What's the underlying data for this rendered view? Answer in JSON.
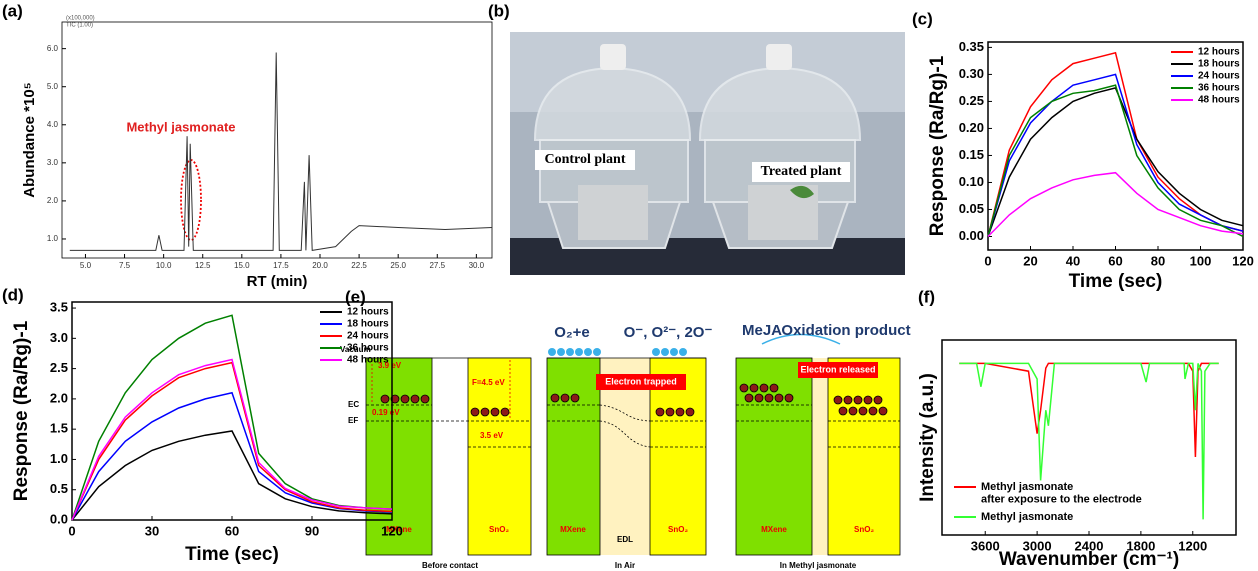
{
  "panel_labels": [
    "(a)",
    "(b)",
    "(c)",
    "(d)",
    "(e)",
    "(f)"
  ],
  "chart_data": [
    {
      "type": "line",
      "xlabel": "RT (min)",
      "ylabel": "Abundance *10⁵",
      "header": [
        "(x100,000)",
        "TIC (1.00)"
      ],
      "annotation": "Methyl jasmonate",
      "x": [
        4,
        9.5,
        9.7,
        9.9,
        11.3,
        11.5,
        11.6,
        11.7,
        11.9,
        17.0,
        17.2,
        17.4,
        18.8,
        19.0,
        19.1,
        19.3,
        19.5,
        21,
        22,
        22.5,
        25,
        28,
        31
      ],
      "series": [
        {
          "color": "#333333",
          "values": [
            0.7,
            0.7,
            1.1,
            0.7,
            0.7,
            3.7,
            0.8,
            3.5,
            0.7,
            0.7,
            5.9,
            0.7,
            0.7,
            2.5,
            0.7,
            3.2,
            0.7,
            0.8,
            1.2,
            1.35,
            1.3,
            1.25,
            1.3
          ]
        }
      ],
      "xlim": [
        3.5,
        31
      ],
      "xticks": [
        {
          "value": 5,
          "label": "5.0"
        },
        7.5,
        {
          "value": 10,
          "label": "10.0"
        },
        12.5,
        {
          "value": 15,
          "label": "15.0"
        },
        17.5,
        {
          "value": 20,
          "label": "20.0"
        },
        22.5,
        {
          "value": 25,
          "label": "25.0"
        },
        27.5,
        {
          "value": 30,
          "label": "30.0"
        }
      ],
      "ylim": [
        0.5,
        6.7
      ],
      "yticks": [
        {
          "value": 1,
          "label": "1.0"
        },
        {
          "value": 2,
          "label": "2.0"
        },
        {
          "value": 3,
          "label": "3.0"
        },
        {
          "value": 4,
          "label": "4.0"
        },
        {
          "value": 5,
          "label": "5.0"
        },
        {
          "value": 6,
          "label": "6.0"
        }
      ]
    },
    {
      "type": "line",
      "xlabel": "Time (sec)",
      "ylabel": "Response (Ra/Rg)-1",
      "legend": "upper right",
      "x": [
        0,
        10,
        20,
        30,
        40,
        50,
        60,
        70,
        80,
        90,
        100,
        110,
        120
      ],
      "series": [
        {
          "name": "12 hours",
          "color": "#ff0000",
          "values": [
            0,
            0.16,
            0.24,
            0.29,
            0.32,
            0.33,
            0.34,
            0.18,
            0.11,
            0.07,
            0.04,
            0.02,
            0.01
          ]
        },
        {
          "name": "18 hours",
          "color": "#000000",
          "values": [
            0,
            0.11,
            0.18,
            0.22,
            0.25,
            0.265,
            0.275,
            0.18,
            0.12,
            0.08,
            0.05,
            0.03,
            0.02
          ]
        },
        {
          "name": "24 hours",
          "color": "#0000ff",
          "values": [
            0,
            0.14,
            0.21,
            0.25,
            0.28,
            0.29,
            0.3,
            0.17,
            0.1,
            0.06,
            0.04,
            0.02,
            0.01
          ]
        },
        {
          "name": "36 hours",
          "color": "#008000",
          "values": [
            0,
            0.15,
            0.22,
            0.25,
            0.265,
            0.27,
            0.28,
            0.15,
            0.09,
            0.05,
            0.03,
            0.02,
            0
          ]
        },
        {
          "name": "48 hours",
          "color": "#ff00ff",
          "values": [
            0,
            0.04,
            0.07,
            0.09,
            0.105,
            0.113,
            0.118,
            0.08,
            0.05,
            0.035,
            0.02,
            0.01,
            0.005
          ]
        }
      ],
      "xlim": [
        0,
        120
      ],
      "xticks": [
        0,
        20,
        40,
        60,
        80,
        100,
        120
      ],
      "ylim": [
        -0.025,
        0.36
      ],
      "yticks": [
        {
          "value": 0,
          "label": "0.00"
        },
        0.05,
        {
          "value": 0.1,
          "label": "0.10"
        },
        0.15,
        {
          "value": 0.2,
          "label": "0.20"
        },
        0.25,
        {
          "value": 0.3,
          "label": "0.30"
        },
        0.35
      ]
    },
    {
      "type": "line",
      "xlabel": "Time (sec)",
      "ylabel": "Response (Ra/Rg)-1",
      "legend": "upper right",
      "x": [
        0,
        10,
        20,
        30,
        40,
        50,
        60,
        70,
        80,
        90,
        100,
        110,
        120
      ],
      "series": [
        {
          "name": "12 hours",
          "color": "#000000",
          "values": [
            0,
            0.55,
            0.9,
            1.15,
            1.3,
            1.4,
            1.47,
            0.6,
            0.35,
            0.22,
            0.15,
            0.12,
            0.1
          ]
        },
        {
          "name": "18 hours",
          "color": "#0000ff",
          "values": [
            0,
            0.8,
            1.3,
            1.62,
            1.85,
            2.0,
            2.1,
            0.8,
            0.45,
            0.28,
            0.19,
            0.15,
            0.13
          ]
        },
        {
          "name": "24 hours",
          "color": "#ff0000",
          "values": [
            0,
            1.0,
            1.65,
            2.05,
            2.35,
            2.5,
            2.6,
            0.9,
            0.5,
            0.3,
            0.2,
            0.16,
            0.14
          ]
        },
        {
          "name": "36 hours",
          "color": "#008000",
          "values": [
            0,
            1.3,
            2.1,
            2.65,
            3.0,
            3.25,
            3.38,
            1.1,
            0.6,
            0.35,
            0.24,
            0.2,
            0.18
          ]
        },
        {
          "name": "48 hours",
          "color": "#ff00ff",
          "values": [
            0,
            1.05,
            1.7,
            2.1,
            2.4,
            2.55,
            2.65,
            0.95,
            0.52,
            0.33,
            0.23,
            0.2,
            0.18
          ]
        }
      ],
      "xlim": [
        0,
        120
      ],
      "xticks": [
        0,
        30,
        60,
        90,
        120
      ],
      "ylim": [
        0,
        3.6
      ],
      "yticks": [
        {
          "value": 0,
          "label": "0.0"
        },
        0.5,
        {
          "value": 1,
          "label": "1.0"
        },
        1.5,
        {
          "value": 2,
          "label": "2.0"
        },
        2.5,
        {
          "value": 3,
          "label": "3.0"
        },
        3.5
      ]
    },
    {
      "type": "line",
      "xlabel": "Wavenumber (cm⁻¹)",
      "ylabel": "Intensity (a.u.)",
      "legend": "lower left",
      "x": [
        3900,
        3700,
        3650,
        3600,
        3100,
        3000,
        2960,
        2900,
        2870,
        2800,
        1800,
        1740,
        1700,
        1300,
        1290,
        1250,
        1200,
        1170,
        1140,
        1100,
        1080,
        1060,
        1000,
        900
      ],
      "series": [
        {
          "name": "Methyl jasmonate\nafter exposure to the electrode",
          "color": "#ff0000",
          "values": [
            1,
            1,
            1,
            1,
            0.95,
            0.55,
            0.7,
            0.97,
            1,
            1,
            1,
            1,
            1,
            1,
            1,
            1,
            0.95,
            0.4,
            0.95,
            1,
            1,
            1,
            1,
            1
          ]
        },
        {
          "name": "Methyl jasmonate",
          "color": "#33ff33",
          "values": [
            1,
            1,
            0.85,
            1,
            1,
            0.9,
            0.25,
            0.7,
            0.6,
            1,
            1,
            0.88,
            1,
            1,
            0.9,
            1,
            1,
            0.7,
            1,
            0.95,
            0,
            0.95,
            1,
            1
          ]
        }
      ],
      "xlim": [
        4100,
        700
      ],
      "xticks": [
        3600,
        3000,
        2400,
        1800,
        1200
      ],
      "ylim": [
        -0.1,
        1.15
      ],
      "yticks": []
    }
  ],
  "photo": {
    "left_label": "Control plant",
    "right_label": "Treated plant"
  },
  "diagram": {
    "vacuum": "Vacuum",
    "mxene_gap": "3.9 eV",
    "ec": "EC",
    "ef": "EF",
    "offset": "0.19 eV",
    "work_function": "F=4.5 eV",
    "sno2_gap": "3.5 eV",
    "mxene": "MXene",
    "sno2": "SnO₂",
    "o2e": "O₂+e",
    "oxygen_species": "O⁻, O²⁻, 2O⁻",
    "trapped": "Electron trapped",
    "edl": "EDL",
    "meja": "MeJA",
    "oxidation": "Oxidation product",
    "released": "Electron released",
    "captions": [
      "Before contact",
      "In Air",
      "In Methyl jasmonate"
    ]
  }
}
